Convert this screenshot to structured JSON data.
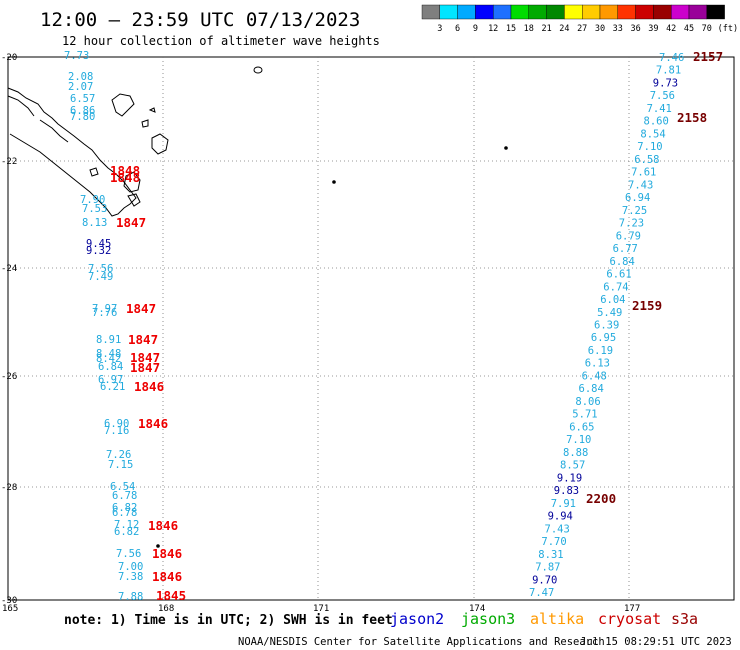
{
  "header": {
    "title": "12:00 – 23:59 UTC 07/13/2023",
    "subtitle": "12 hour collection of altimeter wave heights"
  },
  "color_scale": {
    "colors": [
      "#7f7f7f",
      "#00e5ff",
      "#00aaff",
      "#0000ff",
      "#1e70ff",
      "#00dd00",
      "#00aa00",
      "#008800",
      "#ffff00",
      "#ffcc00",
      "#ff9900",
      "#ff3300",
      "#cc0000",
      "#990000",
      "#cc00cc",
      "#990099",
      "#000000"
    ],
    "labels": [
      "3",
      "6",
      "9",
      "12",
      "15",
      "18",
      "21",
      "24",
      "27",
      "30",
      "33",
      "36",
      "39",
      "42",
      "45",
      "70"
    ],
    "unit": "(ft)"
  },
  "axes": {
    "lat_labels": [
      "-20",
      "-22",
      "-24",
      "-26",
      "-28",
      "-30"
    ],
    "lon_labels": [
      "165",
      "168",
      "171",
      "174",
      "177"
    ]
  },
  "track_colors": {
    "light": "#22aadd",
    "dark": "#000099",
    "red": "#ee0000",
    "maroon": "#770000"
  },
  "tracks": {
    "west_heights": [
      {
        "v": "7.73",
        "c": "light"
      },
      {
        "v": "2.08",
        "c": "light"
      },
      {
        "v": "2.07",
        "c": "light"
      },
      {
        "v": "6.57",
        "c": "light"
      },
      {
        "v": "6.86",
        "c": "light"
      },
      {
        "v": "7.80",
        "c": "light"
      },
      {
        "v": "7.90",
        "c": "light"
      },
      {
        "v": "7.53",
        "c": "light"
      },
      {
        "v": "8.13",
        "c": "light"
      },
      {
        "v": "9.45",
        "c": "dark"
      },
      {
        "v": "9.32",
        "c": "dark"
      },
      {
        "v": "7.56",
        "c": "light"
      },
      {
        "v": "7.49",
        "c": "light"
      },
      {
        "v": "7.97",
        "c": "light"
      },
      {
        "v": "7.76",
        "c": "light"
      },
      {
        "v": "8.91",
        "c": "light"
      },
      {
        "v": "8.48",
        "c": "light"
      },
      {
        "v": "8.42",
        "c": "light"
      },
      {
        "v": "6.84",
        "c": "light"
      },
      {
        "v": "6.97",
        "c": "light"
      },
      {
        "v": "6.21",
        "c": "light"
      },
      {
        "v": "6.90",
        "c": "light"
      },
      {
        "v": "7.16",
        "c": "light"
      },
      {
        "v": "7.26",
        "c": "light"
      },
      {
        "v": "7.15",
        "c": "light"
      },
      {
        "v": "6.54",
        "c": "light"
      },
      {
        "v": "6.78",
        "c": "light"
      },
      {
        "v": "6.82",
        "c": "light"
      },
      {
        "v": "6.78",
        "c": "light"
      },
      {
        "v": "7.12",
        "c": "light"
      },
      {
        "v": "6.82",
        "c": "light"
      },
      {
        "v": "7.56",
        "c": "light"
      },
      {
        "v": "7.00",
        "c": "light"
      },
      {
        "v": "7.38",
        "c": "light"
      },
      {
        "v": "7.88",
        "c": "light"
      }
    ],
    "west_times": [
      "1848",
      "1848",
      "1847",
      "1847",
      "1847",
      "1847",
      "1847",
      "1846",
      "1846",
      "1846",
      "1846",
      "1846",
      "1845"
    ],
    "east_heights": [
      {
        "v": "7.46",
        "c": "light"
      },
      {
        "v": "7.81",
        "c": "light"
      },
      {
        "v": "9.73",
        "c": "dark"
      },
      {
        "v": "7.56",
        "c": "light"
      },
      {
        "v": "7.41",
        "c": "light"
      },
      {
        "v": "8.60",
        "c": "light"
      },
      {
        "v": "8.54",
        "c": "light"
      },
      {
        "v": "7.10",
        "c": "light"
      },
      {
        "v": "6.58",
        "c": "light"
      },
      {
        "v": "7.61",
        "c": "light"
      },
      {
        "v": "7.43",
        "c": "light"
      },
      {
        "v": "6.94",
        "c": "light"
      },
      {
        "v": "7.25",
        "c": "light"
      },
      {
        "v": "7.23",
        "c": "light"
      },
      {
        "v": "6.79",
        "c": "light"
      },
      {
        "v": "6.77",
        "c": "light"
      },
      {
        "v": "6.84",
        "c": "light"
      },
      {
        "v": "6.61",
        "c": "light"
      },
      {
        "v": "6.74",
        "c": "light"
      },
      {
        "v": "6.04",
        "c": "light"
      },
      {
        "v": "5.49",
        "c": "light"
      },
      {
        "v": "6.39",
        "c": "light"
      },
      {
        "v": "6.95",
        "c": "light"
      },
      {
        "v": "6.19",
        "c": "light"
      },
      {
        "v": "6.13",
        "c": "light"
      },
      {
        "v": "6.48",
        "c": "light"
      },
      {
        "v": "6.84",
        "c": "light"
      },
      {
        "v": "8.06",
        "c": "light"
      },
      {
        "v": "5.71",
        "c": "light"
      },
      {
        "v": "6.65",
        "c": "light"
      },
      {
        "v": "7.10",
        "c": "light"
      },
      {
        "v": "8.88",
        "c": "light"
      },
      {
        "v": "8.57",
        "c": "light"
      },
      {
        "v": "9.19",
        "c": "dark"
      },
      {
        "v": "9.83",
        "c": "dark"
      },
      {
        "v": "7.91",
        "c": "light"
      },
      {
        "v": "9.94",
        "c": "dark"
      },
      {
        "v": "7.43",
        "c": "light"
      },
      {
        "v": "7.70",
        "c": "light"
      },
      {
        "v": "8.31",
        "c": "light"
      },
      {
        "v": "7.87",
        "c": "light"
      },
      {
        "v": "9.70",
        "c": "dark"
      },
      {
        "v": "7.47",
        "c": "light"
      }
    ],
    "east_times": [
      "2157",
      "2158",
      "2159",
      "2200"
    ]
  },
  "legend": {
    "note": "note: 1) Time is in UTC; 2) SWH is in feet",
    "satellites": [
      {
        "name": "jason2",
        "color": "#0000cc"
      },
      {
        "name": "jason3",
        "color": "#00aa00"
      },
      {
        "name": "altika",
        "color": "#ff9900"
      },
      {
        "name": "cryosat",
        "color": "#cc0000"
      },
      {
        "name": "s3a",
        "color": "#990000"
      }
    ]
  },
  "footer": {
    "credit": "NOAA/NESDIS Center for Satellite Applications and Research",
    "timestamp": "Jul 15 08:29:51 UTC 2023"
  }
}
